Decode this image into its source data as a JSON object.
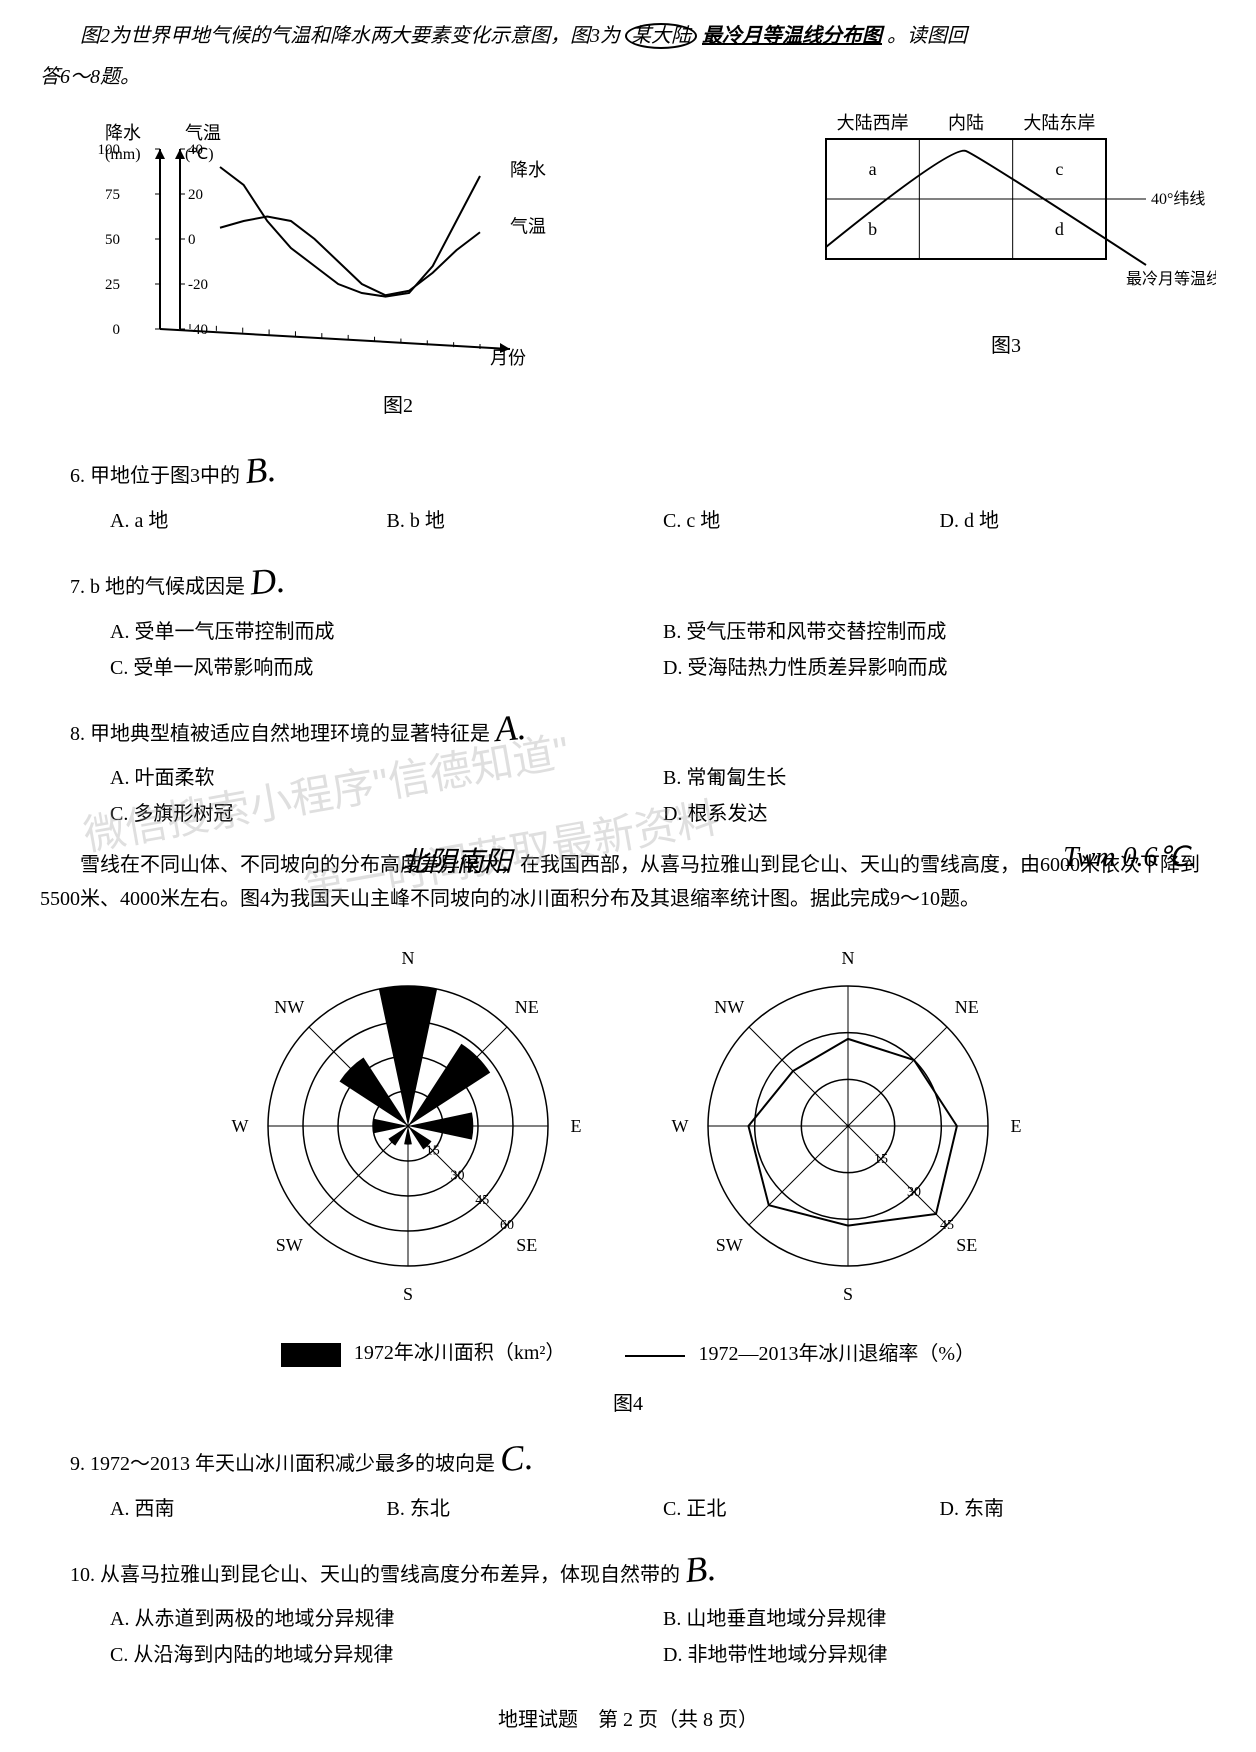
{
  "intro": {
    "text_prefix": "图2为世界甲地气候的气温和降水两大要素变化示意图，图3为",
    "circled": "某大陆",
    "underlined": "最冷月等温线分布图",
    "suffix": "。读图回",
    "line2": "答6～8题。"
  },
  "fig2": {
    "type": "line",
    "y1_label": "降水",
    "y1_unit": "(mm)",
    "y2_label": "气温",
    "y2_unit": "(℃)",
    "y1_ticks": [
      0,
      25,
      50,
      75,
      100
    ],
    "y2_ticks": [
      -40,
      -20,
      0,
      20,
      40
    ],
    "x_label": "月份",
    "caption": "图2",
    "series_precip": {
      "label": "降水",
      "color": "#000000",
      "values": [
        90,
        80,
        60,
        45,
        35,
        25,
        20,
        18,
        20,
        35,
        60,
        85
      ]
    },
    "series_temp": {
      "label": "气温",
      "color": "#000000",
      "values": [
        5,
        8,
        10,
        8,
        0,
        -10,
        -20,
        -25,
        -23,
        -15,
        -5,
        3
      ]
    },
    "background_color": "#ffffff"
  },
  "fig3": {
    "type": "diagram",
    "cols": [
      "大陆西岸",
      "内陆",
      "大陆东岸"
    ],
    "cells": [
      "a",
      "b",
      "c",
      "d"
    ],
    "lat_label": "40°纬线",
    "iso_label": "最冷月等温线",
    "caption": "图3",
    "line_color": "#000000"
  },
  "q6": {
    "stem": "6. 甲地位于图3中的",
    "A": "A. a 地",
    "B": "B. b 地",
    "C": "C. c 地",
    "D": "D. d 地",
    "answer_hw": "B."
  },
  "q7": {
    "stem": "7. b 地的气候成因是",
    "A": "A. 受单一气压带控制而成",
    "B": "B. 受气压带和风带交替控制而成",
    "C": "C. 受单一风带影响而成",
    "D": "D. 受海陆热力性质差异影响而成",
    "answer_hw": "D."
  },
  "q8": {
    "stem": "8. 甲地典型植被适应自然地理环境的显著特征是",
    "A": "A. 叶面柔软",
    "B": "B. 常匍匐生长",
    "C": "C. 多旗形树冠",
    "D": "D. 根系发达",
    "answer_hw": "A."
  },
  "para2": {
    "text": "雪线在不同山体、不同坡向的分布高度差异很大，在我国西部，从喜马拉雅山到昆仑山、天山的雪线高度，由6000米依次下降到5500米、4000米左右。图4为我国天山主峰不同坡向的冰川面积分布及其退缩率统计图。据此完成9～10题。",
    "underline_word": "天山"
  },
  "hw_annot1": "北阴南阳",
  "hw_annot2": "Twm 0.6℃.",
  "fig4": {
    "type": "rose",
    "directions": [
      "N",
      "NE",
      "E",
      "SE",
      "S",
      "SW",
      "W",
      "NW"
    ],
    "radial_ticks_left": [
      15,
      30,
      45,
      60
    ],
    "radial_ticks_right": [
      15,
      30,
      45
    ],
    "area_values": [
      60,
      42,
      28,
      12,
      8,
      10,
      15,
      35
    ],
    "rate_values": [
      28,
      30,
      35,
      40,
      32,
      36,
      32,
      25
    ],
    "legend_left": "1972年冰川面积（km²）",
    "legend_right": "1972—2013年冰川退缩率（%）",
    "caption": "图4",
    "fill_color": "#000000",
    "line_color": "#000000"
  },
  "q9": {
    "stem": "9. 1972～2013 年天山冰川面积减少最多的坡向是",
    "A": "A. 西南",
    "B": "B. 东北",
    "C": "C. 正北",
    "D": "D. 东南",
    "answer_hw": "C."
  },
  "q10": {
    "stem": "10. 从喜马拉雅山到昆仑山、天山的雪线高度分布差异，体现自然带的",
    "A": "A. 从赤道到两极的地域分异规律",
    "B": "B. 山地垂直地域分异规律",
    "C": "C. 从沿海到内陆的地域分异规律",
    "D": "D. 非地带性地域分异规律",
    "answer_hw": "B."
  },
  "footer": "地理试题　第 2 页（共 8 页）",
  "watermark1": "微信搜索小程序\"信德知道\"",
  "watermark2": "第一时间获取最新资料"
}
